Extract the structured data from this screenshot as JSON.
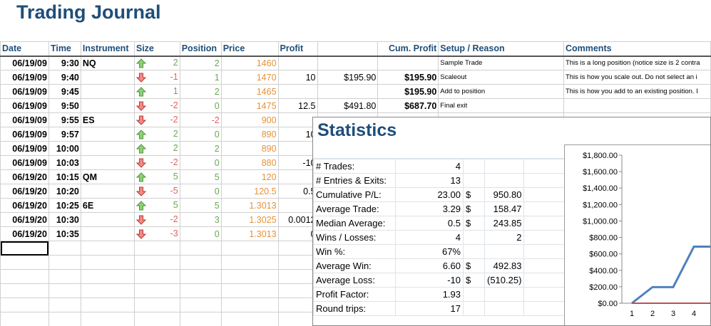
{
  "title": "Trading Journal",
  "headers": {
    "date": "Date",
    "time": "Time",
    "instrument": "Instrument",
    "size": "Size",
    "position": "Position",
    "price": "Price",
    "profit": "Profit",
    "cum_profit": "Cum. Profit",
    "setup": "Setup / Reason",
    "comments": "Comments"
  },
  "rows": [
    {
      "date": "06/19/09",
      "time": "9:30",
      "instrument": "NQ",
      "dir": "up",
      "size": "2",
      "position": "2",
      "price": "1460",
      "profit": "",
      "profit_usd": "",
      "cum": "",
      "setup": "Sample Trade",
      "comment": "This is a long position (notice size is 2 contra"
    },
    {
      "date": "06/19/09",
      "time": "9:40",
      "instrument": "",
      "dir": "down",
      "size": "-1",
      "position": "1",
      "price": "1470",
      "profit": "10",
      "profit_usd": "$195.90",
      "cum": "$195.90",
      "setup": "Scaleout",
      "comment": "This is how you scale out. Do not select an i"
    },
    {
      "date": "06/19/09",
      "time": "9:45",
      "instrument": "",
      "dir": "up",
      "size": "1",
      "position": "2",
      "price": "1465",
      "profit": "",
      "profit_usd": "",
      "cum": "$195.90",
      "setup": "Add to position",
      "comment": "This is how you add to an existing position. I"
    },
    {
      "date": "06/19/09",
      "time": "9:50",
      "instrument": "",
      "dir": "down",
      "size": "-2",
      "position": "0",
      "price": "1475",
      "profit": "12.5",
      "profit_usd": "$491.80",
      "cum": "$687.70",
      "setup": "Final exit",
      "comment": ""
    },
    {
      "date": "06/19/09",
      "time": "9:55",
      "instrument": "ES",
      "dir": "down",
      "size": "-2",
      "position": "-2",
      "price": "900",
      "profit": "",
      "profit_usd": "",
      "cum": "",
      "setup": "",
      "comment": ""
    },
    {
      "date": "06/19/09",
      "time": "9:57",
      "instrument": "",
      "dir": "up",
      "size": "2",
      "position": "0",
      "price": "890",
      "profit": "10",
      "profit_usd": "",
      "cum": "",
      "setup": "",
      "comment": ""
    },
    {
      "date": "06/19/09",
      "time": "10:00",
      "instrument": "",
      "dir": "up",
      "size": "2",
      "position": "2",
      "price": "890",
      "profit": "",
      "profit_usd": "",
      "cum": "",
      "setup": "",
      "comment": ""
    },
    {
      "date": "06/19/09",
      "time": "10:03",
      "instrument": "",
      "dir": "down",
      "size": "-2",
      "position": "0",
      "price": "880",
      "profit": "-10",
      "profit_usd": "",
      "cum": "",
      "setup": "",
      "comment": ""
    },
    {
      "date": "06/19/20",
      "time": "10:15",
      "instrument": "QM",
      "dir": "up",
      "size": "5",
      "position": "5",
      "price": "120",
      "profit": "",
      "profit_usd": "",
      "cum": "",
      "setup": "",
      "comment": ""
    },
    {
      "date": "06/19/20",
      "time": "10:20",
      "instrument": "",
      "dir": "down",
      "size": "-5",
      "position": "0",
      "price": "120.5",
      "profit": "0.5",
      "profit_usd": "",
      "cum": "",
      "setup": "",
      "comment": ""
    },
    {
      "date": "06/19/20",
      "time": "10:25",
      "instrument": "6E",
      "dir": "up",
      "size": "5",
      "position": "5",
      "price": "1.3013",
      "profit": "",
      "profit_usd": "",
      "cum": "",
      "setup": "",
      "comment": ""
    },
    {
      "date": "06/19/20",
      "time": "10:30",
      "instrument": "",
      "dir": "down",
      "size": "-2",
      "position": "3",
      "price": "1.3025",
      "profit": "0.0012",
      "profit_usd": "",
      "cum": "",
      "setup": "",
      "comment": ""
    },
    {
      "date": "06/19/20",
      "time": "10:35",
      "instrument": "",
      "dir": "down",
      "size": "-3",
      "position": "0",
      "price": "1.3013",
      "profit": "0",
      "profit_usd": "",
      "cum": "",
      "setup": "",
      "comment": ""
    }
  ],
  "stats": {
    "title": "Statistics",
    "rows": [
      {
        "label": "# Trades:",
        "v1": "4",
        "cur": "",
        "v2": ""
      },
      {
        "label": "# Entries & Exits:",
        "v1": "13",
        "cur": "",
        "v2": ""
      },
      {
        "label": "Cumulative P/L:",
        "v1": "23.00",
        "cur": "$",
        "v2": "950.80"
      },
      {
        "label": "Average Trade:",
        "v1": "3.29",
        "cur": "$",
        "v2": "158.47"
      },
      {
        "label": "Median Average:",
        "v1": "0.5",
        "cur": "$",
        "v2": "243.85"
      },
      {
        "label": "Wins / Losses:",
        "v1": "4",
        "cur": "",
        "v2": "2"
      },
      {
        "label": "Win %:",
        "v1": "67%",
        "cur": "",
        "v2": ""
      },
      {
        "label": "Average Win:",
        "v1": "6.60",
        "cur": "$",
        "v2": "492.83"
      },
      {
        "label": "Average Loss:",
        "v1": "-10",
        "cur": "$",
        "v2": "(510.25)"
      },
      {
        "label": "Profit Factor:",
        "v1": "1.93",
        "cur": "",
        "v2": ""
      },
      {
        "label": "Round trips:",
        "v1": "17",
        "cur": "",
        "v2": ""
      }
    ]
  },
  "chart_data": {
    "type": "line",
    "x": [
      1,
      2,
      3,
      4,
      5
    ],
    "y_ticks": [
      "$1,800.00",
      "$1,600.00",
      "$1,400.00",
      "$1,200.00",
      "$1,000.00",
      "$800.00",
      "$600.00",
      "$400.00",
      "$200.00",
      "$0.00"
    ],
    "x_ticks": [
      "1",
      "2",
      "3",
      "4"
    ],
    "series": [
      {
        "values": [
          0,
          195.9,
          195.9,
          687.7,
          687.7
        ],
        "color": "#4f81bd"
      },
      {
        "values": [
          0,
          0,
          0,
          0,
          0
        ],
        "color": "#c0504d"
      }
    ],
    "ylim": [
      0,
      1800
    ]
  },
  "colors": {
    "title": "#1f4e79",
    "up": "#6aa84f",
    "down": "#e06060",
    "price": "#e69138"
  }
}
